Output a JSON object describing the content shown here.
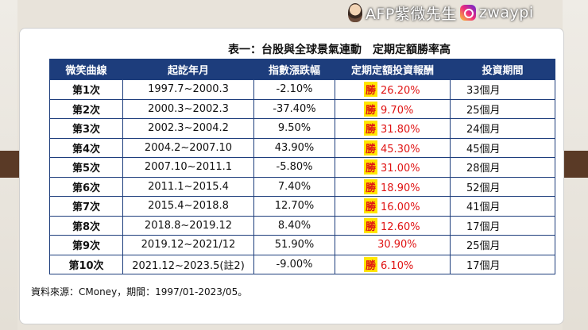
{
  "watermark": {
    "text": "AFP紫微先生",
    "handle": "zwaypi"
  },
  "caption": "表一：台股與全球景氣連動　定期定額勝率高",
  "table": {
    "headers": [
      "微笑曲線",
      "起訖年月",
      "指數漲跌幅",
      "定期定額投資報酬",
      "投資期間"
    ],
    "rows": [
      {
        "round": "第1次",
        "period": "1997.7~2000.3",
        "index": "-2.10%",
        "win": "勝",
        "ret": "26.20%",
        "dur": "33個月"
      },
      {
        "round": "第2次",
        "period": "2000.3~2002.3",
        "index": "-37.40%",
        "win": "勝",
        "ret": "9.70%",
        "dur": "25個月"
      },
      {
        "round": "第3次",
        "period": "2002.3~2004.2",
        "index": "9.50%",
        "win": "勝",
        "ret": "31.80%",
        "dur": "24個月"
      },
      {
        "round": "第4次",
        "period": "2004.2~2007.10",
        "index": "43.90%",
        "win": "勝",
        "ret": "45.30%",
        "dur": "45個月"
      },
      {
        "round": "第5次",
        "period": "2007.10~2011.1",
        "index": "-5.80%",
        "win": "勝",
        "ret": "31.00%",
        "dur": "28個月"
      },
      {
        "round": "第6次",
        "period": "2011.1~2015.4",
        "index": "7.40%",
        "win": "勝",
        "ret": "18.90%",
        "dur": "52個月"
      },
      {
        "round": "第7次",
        "period": "2015.4~2018.8",
        "index": "12.70%",
        "win": "勝",
        "ret": "16.00%",
        "dur": "41個月"
      },
      {
        "round": "第8次",
        "period": "2018.8~2019.12",
        "index": "8.40%",
        "win": "勝",
        "ret": "12.60%",
        "dur": "17個月"
      },
      {
        "round": "第9次",
        "period": "2019.12~2021/12",
        "index": "51.90%",
        "win": "",
        "ret": "30.90%",
        "dur": "25個月"
      },
      {
        "round": "第10次",
        "period": "2021.12~2023.5(註2)",
        "index": "-9.00%",
        "win": "勝",
        "ret": "6.10%",
        "dur": "17個月"
      }
    ]
  },
  "source": "資料來源：CMoney，期間：1997/01-2023/05。",
  "colors": {
    "header_bg": "#1d3d7c",
    "return_text": "#e01414",
    "win_highlight": "#ffe600"
  }
}
